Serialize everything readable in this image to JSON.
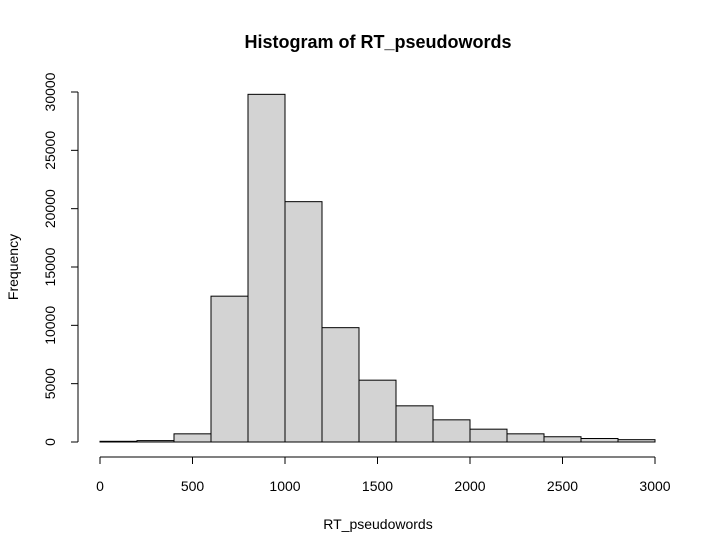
{
  "chart_data": {
    "type": "bar",
    "title": "Histogram of RT_pseudowords",
    "xlabel": "RT_pseudowords",
    "ylabel": "Frequency",
    "bin_edges": [
      0,
      200,
      400,
      600,
      800,
      1000,
      1200,
      1400,
      1600,
      1800,
      2000,
      2200,
      2400,
      2600,
      2800,
      3000
    ],
    "values": [
      60,
      120,
      700,
      12500,
      29800,
      20600,
      9800,
      5300,
      3100,
      1900,
      1100,
      700,
      450,
      300,
      200
    ],
    "xlim": [
      0,
      3000
    ],
    "ylim": [
      0,
      30000
    ],
    "x_ticks": [
      "0",
      "500",
      "1000",
      "1500",
      "2000",
      "2500",
      "3000"
    ],
    "y_ticks": [
      "0",
      "5000",
      "10000",
      "15000",
      "20000",
      "25000",
      "30000"
    ],
    "grid": false,
    "colors": {
      "bar_fill": "#d3d3d3",
      "bar_stroke": "#000000"
    }
  }
}
